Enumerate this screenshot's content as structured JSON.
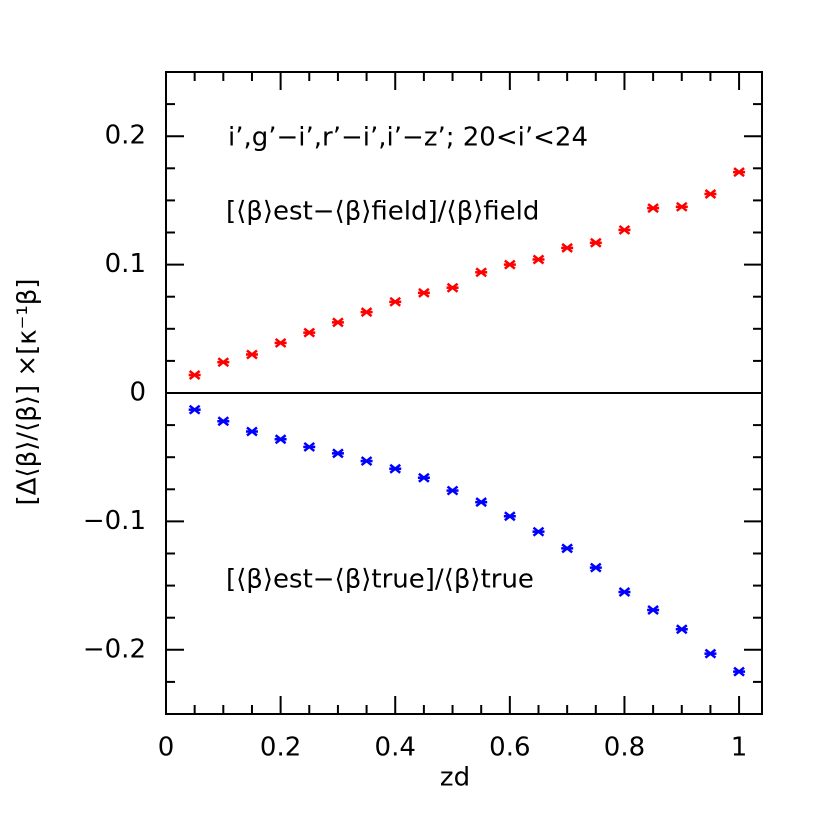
{
  "chart_data": {
    "type": "scatter",
    "annotation": "i’,g’−i’,r’−i’,i’−z’;  20<i’<24",
    "x_label": "zd",
    "y_label": "[Δ⟨β⟩/⟨β⟩]  ×[κ⁻¹β]",
    "xlim": [
      0,
      1.04
    ],
    "ylim": [
      -0.25,
      0.25
    ],
    "xticks": [
      0,
      0.2,
      0.4,
      0.6,
      0.8,
      1
    ],
    "yticks": [
      {
        "value": -0.2,
        "label": "−0.2"
      },
      {
        "value": -0.1,
        "label": "−0.1"
      },
      0,
      0.1,
      0.2
    ],
    "xminorticks": [
      0.05,
      0.1,
      0.15,
      0.25,
      0.3,
      0.35,
      0.45,
      0.5,
      0.55,
      0.65,
      0.7,
      0.75,
      0.85,
      0.9,
      0.95
    ],
    "yminorticks": [
      -0.225,
      -0.175,
      -0.15,
      -0.125,
      -0.075,
      -0.05,
      -0.025,
      0.025,
      0.05,
      0.075,
      0.125,
      0.15,
      0.175,
      0.225
    ],
    "hline": 0,
    "x": [
      0.05,
      0.1,
      0.15,
      0.2,
      0.25,
      0.3,
      0.35,
      0.4,
      0.45,
      0.5,
      0.55,
      0.6,
      0.65,
      0.7,
      0.75,
      0.8,
      0.85,
      0.9,
      0.95,
      1
    ],
    "series": [
      {
        "name": "[⟨β⟩est−⟨β⟩field]/⟨β⟩field",
        "color": "#ff0000",
        "values": [
          0.014,
          0.024,
          0.03,
          0.039,
          0.047,
          0.055,
          0.063,
          0.071,
          0.078,
          0.082,
          0.094,
          0.1,
          0.104,
          0.113,
          0.117,
          0.127,
          0.144,
          0.145,
          0.155,
          0.172
        ]
      },
      {
        "name": "[⟨β⟩est−⟨β⟩true]/⟨β⟩true",
        "color": "#0000ff",
        "values": [
          -0.013,
          -0.022,
          -0.03,
          -0.036,
          -0.042,
          -0.047,
          -0.053,
          -0.059,
          -0.066,
          -0.076,
          -0.085,
          -0.096,
          -0.108,
          -0.121,
          -0.136,
          -0.155,
          -0.169,
          -0.184,
          -0.203,
          -0.217
        ]
      }
    ]
  }
}
